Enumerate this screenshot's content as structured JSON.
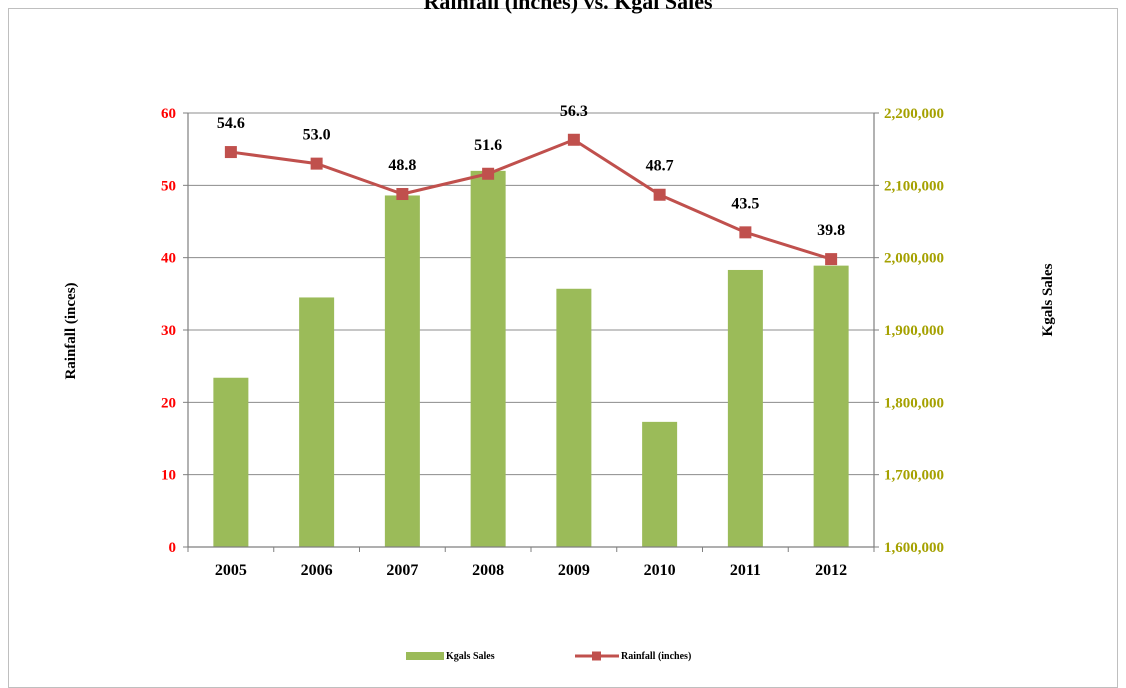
{
  "chart_data": {
    "type": "bar+line",
    "title": "Rainfall (inches) vs. Kgal Sales",
    "categories": [
      "2005",
      "2006",
      "2007",
      "2008",
      "2009",
      "2010",
      "2011",
      "2012"
    ],
    "series": [
      {
        "name": "Kgals Sales",
        "type": "bar",
        "axis": "right",
        "color": "#9bbb59",
        "values": [
          1834000,
          1945000,
          2086000,
          2120000,
          1957000,
          1773000,
          1983000,
          1989000
        ]
      },
      {
        "name": "Rainfall (inches)",
        "type": "line",
        "axis": "left",
        "color": "#c0504d",
        "marker": "square",
        "values": [
          54.6,
          53.0,
          48.8,
          51.6,
          56.3,
          48.7,
          43.5,
          39.8
        ],
        "labels": [
          "54.6",
          "53.0",
          "48.8",
          "51.6",
          "56.3",
          "48.7",
          "43.5",
          "39.8"
        ]
      }
    ],
    "y_left": {
      "label": "Rainfall (inces)",
      "ylim": [
        0,
        60
      ],
      "ticks": [
        "0",
        "10",
        "20",
        "30",
        "40",
        "50",
        "60"
      ],
      "tick_color": "#ff0000"
    },
    "y_right": {
      "label": "Kgals Sales",
      "ylim": [
        1600000,
        2200000
      ],
      "ticks": [
        "1,600,000",
        "1,700,000",
        "1,800,000",
        "1,900,000",
        "2,000,000",
        "2,100,000",
        "2,200,000"
      ],
      "tick_color": "#a5a100"
    },
    "grid": true,
    "legend": {
      "placement": "bottom-center",
      "entries": [
        "Kgals Sales",
        "Rainfall (inches)"
      ]
    }
  }
}
